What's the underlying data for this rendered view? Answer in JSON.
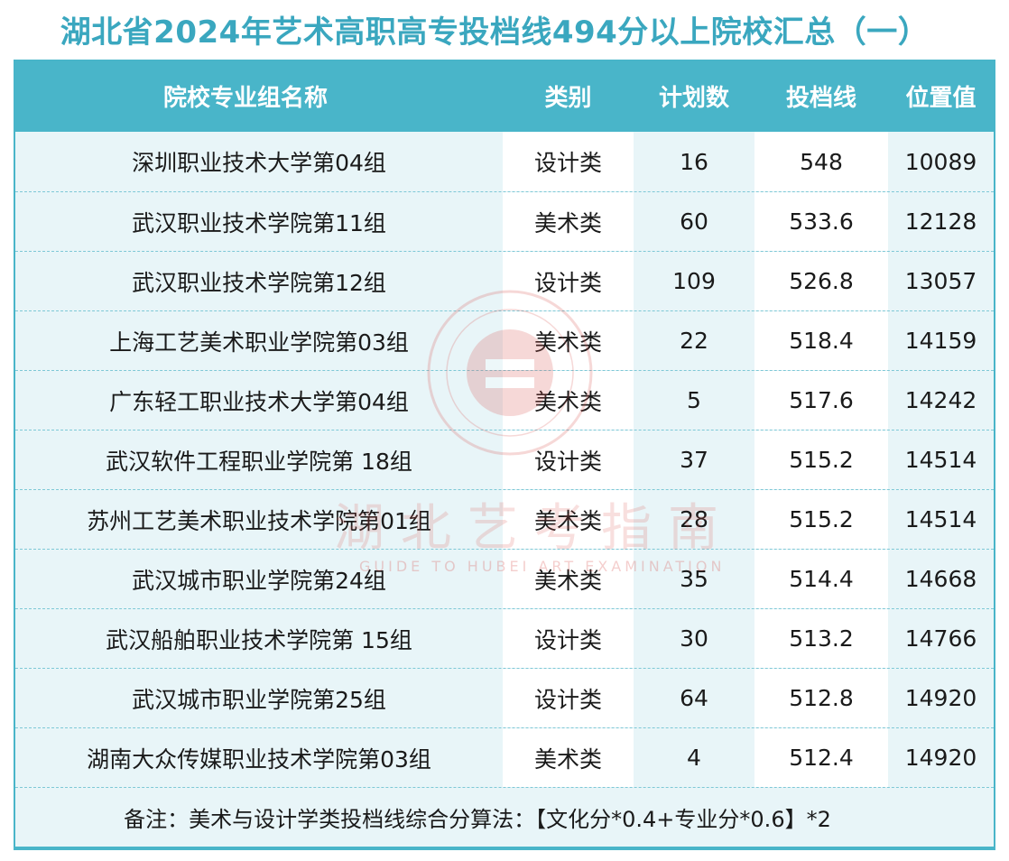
{
  "title": "湖北省2024年艺术高职高专投档线494分以上院校汇总（一）",
  "table": {
    "headers": [
      "院校专业组名称",
      "类别",
      "计划数",
      "投档线",
      "位置值"
    ],
    "rows": [
      [
        "深圳职业技术大学第04组",
        "设计类",
        "16",
        "548",
        "10089"
      ],
      [
        "武汉职业技术学院第11组",
        "美术类",
        "60",
        "533.6",
        "12128"
      ],
      [
        "武汉职业技术学院第12组",
        "设计类",
        "109",
        "526.8",
        "13057"
      ],
      [
        "上海工艺美术职业学院第03组",
        "美术类",
        "22",
        "518.4",
        "14159"
      ],
      [
        "广东轻工职业技术大学第04组",
        "美术类",
        "5",
        "517.6",
        "14242"
      ],
      [
        "武汉软件工程职业学院第 18组",
        "设计类",
        "37",
        "515.2",
        "14514"
      ],
      [
        "苏州工艺美术职业技术学院第01组",
        "美术类",
        "28",
        "515.2",
        "14514"
      ],
      [
        "武汉城市职业学院第24组",
        "美术类",
        "35",
        "514.4",
        "14668"
      ],
      [
        "武汉船舶职业技术学院第 15组",
        "设计类",
        "30",
        "513.2",
        "14766"
      ],
      [
        "武汉城市职业学院第25组",
        "设计类",
        "64",
        "512.8",
        "14920"
      ],
      [
        "湖南大众传媒职业技术学院第03组",
        "美术类",
        "4",
        "512.4",
        "14920"
      ]
    ],
    "note": "备注：美术与设计学类投档线综合分算法：【文化分*0.4+专业分*0.6】*2"
  },
  "watermark": {
    "text": "湖北艺考指南",
    "sub": "GUIDE TO HUBEI ART EXAMINATION"
  },
  "colors": {
    "accent": "#49b5c9",
    "title": "#3aa7bf",
    "row_tint": "#e8f5f8",
    "watermark": "#d9534f"
  }
}
